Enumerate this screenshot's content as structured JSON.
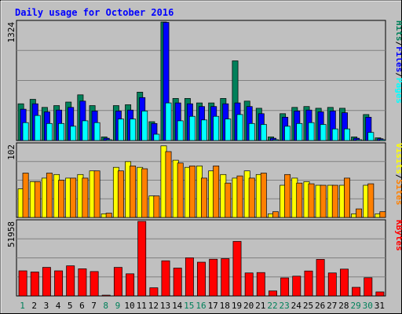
{
  "chart_data": [
    {
      "type": "bar",
      "title": "Daily usage for October 2016",
      "panel": "top",
      "y_max_label": "1324",
      "ylim": [
        0,
        1324
      ],
      "categories": [
        "1",
        "2",
        "3",
        "4",
        "5",
        "6",
        "7",
        "8",
        "9",
        "10",
        "11",
        "12",
        "13",
        "14",
        "15",
        "16",
        "17",
        "18",
        "19",
        "20",
        "21",
        "22",
        "23",
        "24",
        "25",
        "26",
        "27",
        "28",
        "29",
        "30",
        "31"
      ],
      "weekend_days": [
        "1",
        "8",
        "9",
        "15",
        "16",
        "22",
        "23",
        "29",
        "30"
      ],
      "legend": [
        "Pages",
        "/",
        "Files",
        "/",
        "Hits"
      ],
      "series": [
        {
          "name": "Hits",
          "color": "#00805a",
          "values": [
            410,
            460,
            370,
            390,
            430,
            510,
            390,
            40,
            390,
            400,
            540,
            210,
            1324,
            470,
            470,
            420,
            420,
            470,
            890,
            440,
            360,
            40,
            300,
            370,
            380,
            360,
            370,
            360,
            40,
            290,
            30
          ]
        },
        {
          "name": "Files",
          "color": "#0000ff",
          "values": [
            350,
            410,
            320,
            340,
            370,
            440,
            330,
            25,
            330,
            340,
            480,
            190,
            1320,
            420,
            410,
            380,
            380,
            410,
            420,
            380,
            300,
            25,
            260,
            330,
            340,
            320,
            330,
            310,
            25,
            260,
            20
          ]
        },
        {
          "name": "Pages",
          "color": "#00ffff",
          "values": [
            200,
            280,
            190,
            190,
            160,
            220,
            200,
            10,
            240,
            240,
            330,
            70,
            420,
            220,
            270,
            230,
            270,
            240,
            290,
            190,
            180,
            10,
            160,
            190,
            200,
            180,
            130,
            130,
            10,
            90,
            10
          ]
        }
      ]
    },
    {
      "type": "bar",
      "panel": "middle",
      "y_max_label": "102",
      "ylim": [
        0,
        102
      ],
      "categories": [
        "1",
        "2",
        "3",
        "4",
        "5",
        "6",
        "7",
        "8",
        "9",
        "10",
        "11",
        "12",
        "13",
        "14",
        "15",
        "16",
        "17",
        "18",
        "19",
        "20",
        "21",
        "22",
        "23",
        "24",
        "25",
        "26",
        "27",
        "28",
        "29",
        "30",
        "31"
      ],
      "legend": [
        "Sites",
        "/",
        "Visits"
      ],
      "series": [
        {
          "name": "Visits",
          "color": "#ffff00",
          "values": [
            40,
            50,
            55,
            60,
            55,
            60,
            65,
            5,
            70,
            78,
            70,
            30,
            100,
            80,
            70,
            72,
            65,
            60,
            55,
            65,
            60,
            5,
            45,
            55,
            50,
            45,
            45,
            45,
            5,
            45,
            5
          ]
        },
        {
          "name": "Sites",
          "color": "#ff8000",
          "values": [
            62,
            50,
            62,
            52,
            55,
            55,
            65,
            6,
            65,
            72,
            68,
            30,
            92,
            76,
            72,
            55,
            72,
            48,
            58,
            55,
            62,
            8,
            60,
            48,
            47,
            45,
            45,
            55,
            12,
            47,
            8
          ]
        }
      ]
    },
    {
      "type": "bar",
      "panel": "bottom",
      "y_max_label": "51958",
      "ylim": [
        0,
        51958
      ],
      "categories": [
        "1",
        "2",
        "3",
        "4",
        "5",
        "6",
        "7",
        "8",
        "9",
        "10",
        "11",
        "12",
        "13",
        "14",
        "15",
        "16",
        "17",
        "18",
        "19",
        "20",
        "21",
        "22",
        "23",
        "24",
        "25",
        "26",
        "27",
        "28",
        "29",
        "30",
        "31"
      ],
      "legend": [
        "KBytes"
      ],
      "series": [
        {
          "name": "KBytes",
          "color": "#ff0000",
          "values": [
            17500,
            16700,
            19900,
            17500,
            21000,
            18900,
            17000,
            300,
            19900,
            15400,
            51958,
            5700,
            24500,
            19400,
            26600,
            23500,
            25600,
            26000,
            38000,
            16000,
            16300,
            3500,
            12600,
            13800,
            17400,
            25500,
            16000,
            18700,
            6000,
            12700,
            2800
          ]
        }
      ]
    }
  ],
  "theme": {
    "background": "#c0c0c0",
    "plot_background": "#c0c0c0",
    "grid": "#808080",
    "title_color": "#0000ff",
    "weekday_label": "#000000",
    "weekend_label": "#00805a"
  }
}
